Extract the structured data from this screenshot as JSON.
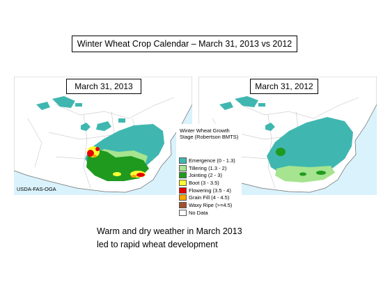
{
  "title": "Winter Wheat Crop Calendar – March 31, 2013 vs 2012",
  "maps": [
    {
      "label": "March 31, 2013",
      "credit": "USDA-FAS-OGA"
    },
    {
      "label": "March 31, 2012"
    }
  ],
  "legend": {
    "title": "Winter Wheat Growth Stage (Robertson BMTS)",
    "items": [
      {
        "label": "Emergence (0 - 1.3)",
        "color": "#3fb7b0"
      },
      {
        "label": "Tillering (1.3 - 2)",
        "color": "#a6e48f"
      },
      {
        "label": "Jointing (2 - 3)",
        "color": "#1f9a1f"
      },
      {
        "label": "Boot (3 - 3.5)",
        "color": "#ffff33"
      },
      {
        "label": "Flowering (3.5 - 4)",
        "color": "#e60000"
      },
      {
        "label": "Grain Fill (4 - 4.5)",
        "color": "#ffa500"
      },
      {
        "label": "Waxy Ripe (>=4.5)",
        "color": "#a0522d"
      },
      {
        "label": "No Data",
        "color": "#ffffff"
      }
    ]
  },
  "caption": {
    "line1": "Warm and dry weather in March 2013",
    "line2": "led to rapid wheat development"
  }
}
